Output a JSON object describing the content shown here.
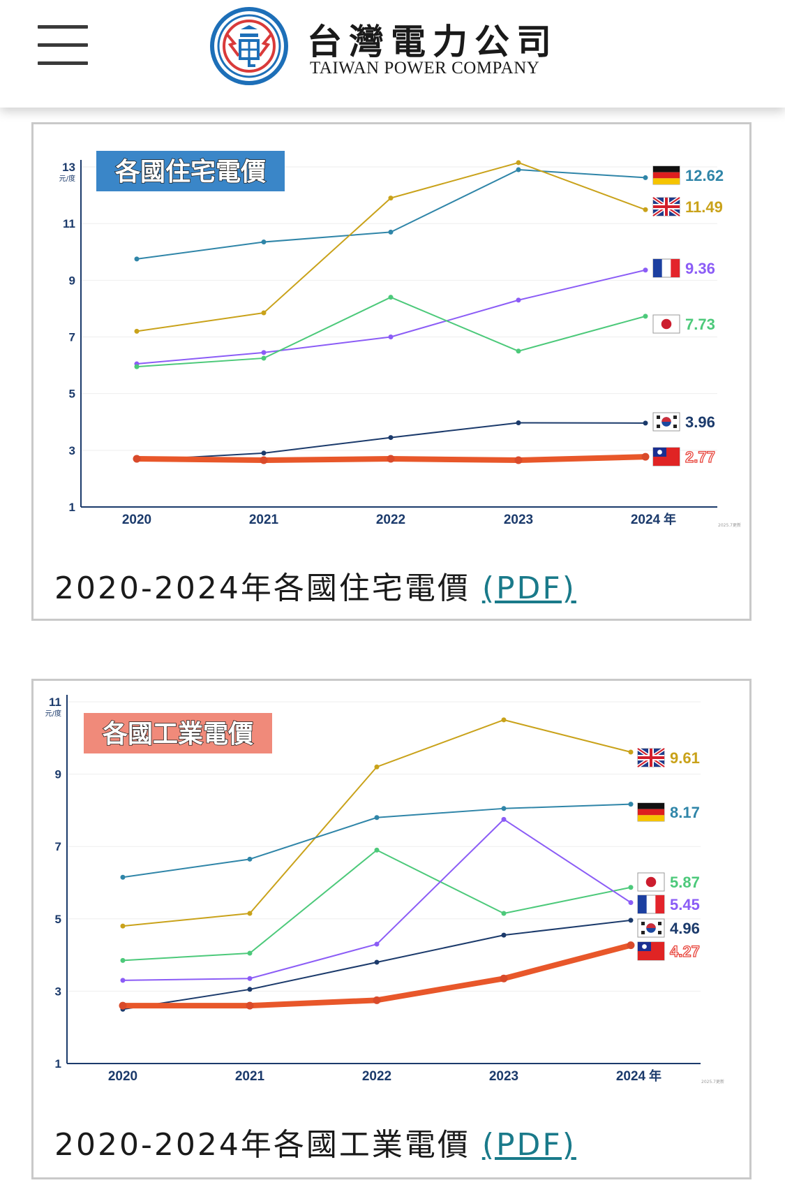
{
  "header": {
    "brand_zh": "台灣電力公司",
    "brand_en": "TAIWAN POWER COMPANY",
    "logo_icon": "taipower-logo-icon",
    "menu_icon": "hamburger-menu-icon"
  },
  "cards": [
    {
      "caption": "2020-2024年各國住宅電價",
      "link": "(PDF)"
    },
    {
      "caption": "2020-2024年各國工業電價",
      "link": "(PDF)"
    }
  ],
  "chart_data": [
    {
      "type": "line",
      "title": "各國住宅電價",
      "title_bg": "#3a86c8",
      "ylabel": "元/度",
      "xlabel_suffix": "年",
      "ylim": [
        1,
        13
      ],
      "yticks": [
        1,
        3,
        5,
        7,
        9,
        11,
        13
      ],
      "x": [
        "2020",
        "2021",
        "2022",
        "2023",
        "2024"
      ],
      "footnote": "2025.7更新",
      "series": [
        {
          "flag": "germany-flag-icon",
          "color": "#2f85a8",
          "values": [
            9.75,
            10.35,
            10.7,
            12.9,
            12.62
          ],
          "label": "12.62"
        },
        {
          "flag": "uk-flag-icon",
          "color": "#c9a21a",
          "values": [
            7.2,
            7.85,
            11.9,
            13.15,
            11.49
          ],
          "label": "11.49"
        },
        {
          "flag": "france-flag-icon",
          "color": "#8b5cf6",
          "values": [
            6.05,
            6.45,
            7.0,
            8.3,
            9.36
          ],
          "label": "9.36"
        },
        {
          "flag": "japan-flag-icon",
          "color": "#4cc97a",
          "values": [
            5.95,
            6.25,
            8.4,
            6.5,
            7.73
          ],
          "label": "7.73"
        },
        {
          "flag": "korea-flag-icon",
          "color": "#1b3a6b",
          "values": [
            2.65,
            2.9,
            3.45,
            3.97,
            3.96
          ],
          "label": "3.96"
        },
        {
          "flag": "taiwan-flag-icon",
          "color": "#e8572a",
          "values": [
            2.7,
            2.65,
            2.7,
            2.65,
            2.77
          ],
          "label": "2.77"
        }
      ]
    },
    {
      "type": "line",
      "title": "各國工業電價",
      "title_bg": "#f08a7a",
      "ylabel": "元/度",
      "xlabel_suffix": "年",
      "ylim": [
        1,
        11
      ],
      "yticks": [
        1,
        3,
        5,
        7,
        9,
        11
      ],
      "x": [
        "2020",
        "2021",
        "2022",
        "2023",
        "2024"
      ],
      "footnote": "2025.7更新",
      "series": [
        {
          "flag": "uk-flag-icon",
          "color": "#c9a21a",
          "values": [
            4.8,
            5.15,
            9.2,
            10.5,
            9.61
          ],
          "label": "9.61"
        },
        {
          "flag": "germany-flag-icon",
          "color": "#2f85a8",
          "values": [
            6.15,
            6.65,
            7.8,
            8.05,
            8.17
          ],
          "label": "8.17"
        },
        {
          "flag": "japan-flag-icon",
          "color": "#4cc97a",
          "values": [
            3.85,
            4.05,
            6.9,
            5.15,
            5.87
          ],
          "label": "5.87"
        },
        {
          "flag": "france-flag-icon",
          "color": "#8b5cf6",
          "values": [
            3.3,
            3.35,
            4.3,
            7.75,
            5.45
          ],
          "label": "5.45"
        },
        {
          "flag": "korea-flag-icon",
          "color": "#1b3a6b",
          "values": [
            2.5,
            3.05,
            3.8,
            4.55,
            4.96
          ],
          "label": "4.96"
        },
        {
          "flag": "taiwan-flag-icon",
          "color": "#e8572a",
          "values": [
            2.6,
            2.6,
            2.75,
            3.35,
            4.27
          ],
          "label": "4.27"
        }
      ]
    }
  ]
}
